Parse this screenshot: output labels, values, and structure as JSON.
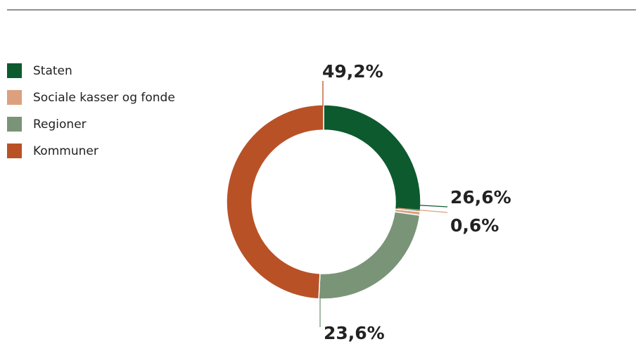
{
  "chart_data": {
    "type": "donut",
    "categories": [
      "Staten",
      "Sociale kasser og fonde",
      "Regioner",
      "Kommuner"
    ],
    "values": [
      26.6,
      0.6,
      23.6,
      49.2
    ],
    "value_labels": [
      "26,6%",
      "0,6%",
      "23,6%",
      "49,2%"
    ],
    "colors": [
      "#0d5a2e",
      "#dda07e",
      "#7a9478",
      "#b95127"
    ]
  }
}
